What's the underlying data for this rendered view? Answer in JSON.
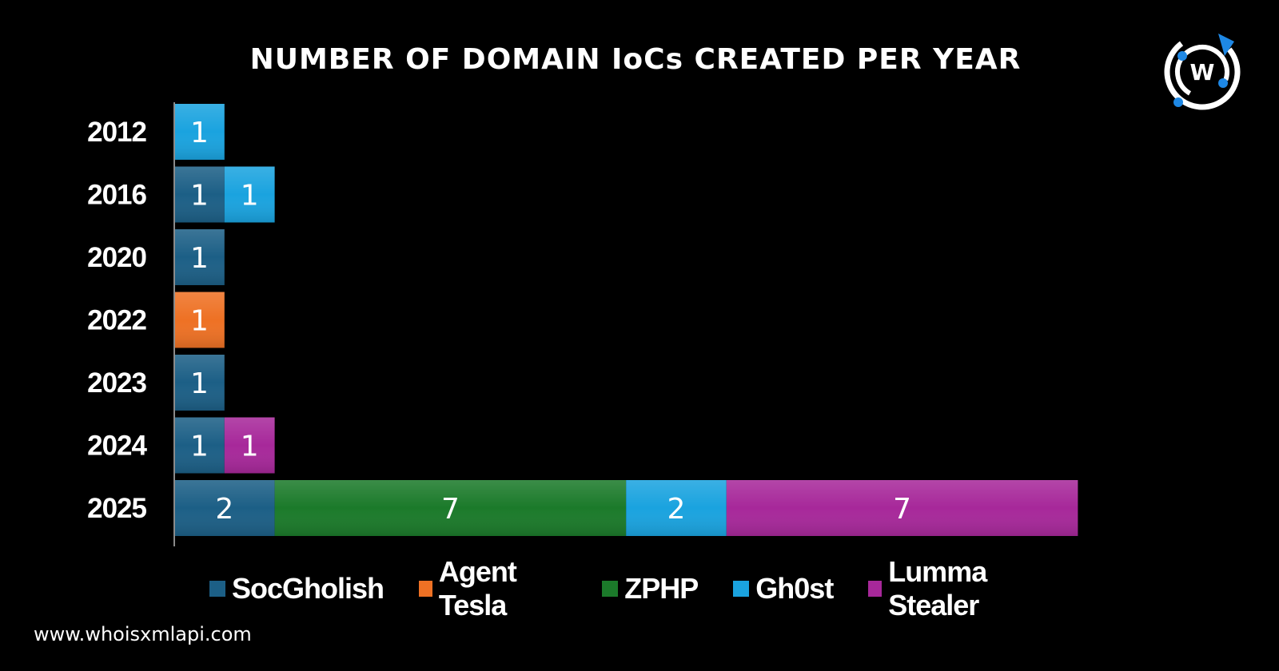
{
  "header": {
    "title": "NUMBER OF DOMAIN IoCs CREATED PER YEAR"
  },
  "brand": {
    "logo_icon": "whoisxmlapi-logo-icon",
    "logo_letter": "W",
    "url": "www.whoisxmlapi.com"
  },
  "colors": {
    "background": "#000000",
    "SocGholish": "#1c5f86",
    "Agent Tesla": "#ee7124",
    "ZPHP": "#1b7a2a",
    "Gh0st": "#1aa3df",
    "Lumma Stealer": "#a7289a"
  },
  "chart_data": {
    "type": "bar",
    "orientation": "horizontal",
    "stacked": true,
    "title": "NUMBER OF DOMAIN IoCs CREATED PER YEAR",
    "categories": [
      "2012",
      "2016",
      "2020",
      "2022",
      "2023",
      "2024",
      "2025"
    ],
    "series": [
      {
        "name": "SocGholish",
        "values": [
          0,
          1,
          1,
          0,
          1,
          1,
          2
        ]
      },
      {
        "name": "Agent Tesla",
        "values": [
          0,
          0,
          0,
          1,
          0,
          0,
          0
        ]
      },
      {
        "name": "ZPHP",
        "values": [
          0,
          0,
          0,
          0,
          0,
          0,
          7
        ]
      },
      {
        "name": "Gh0st",
        "values": [
          1,
          1,
          0,
          0,
          0,
          0,
          2
        ]
      },
      {
        "name": "Lumma Stealer",
        "values": [
          0,
          0,
          0,
          0,
          0,
          1,
          7
        ]
      }
    ],
    "xlim": [
      0,
      18
    ],
    "grid": false,
    "legend_position": "bottom",
    "data_labels": true
  }
}
